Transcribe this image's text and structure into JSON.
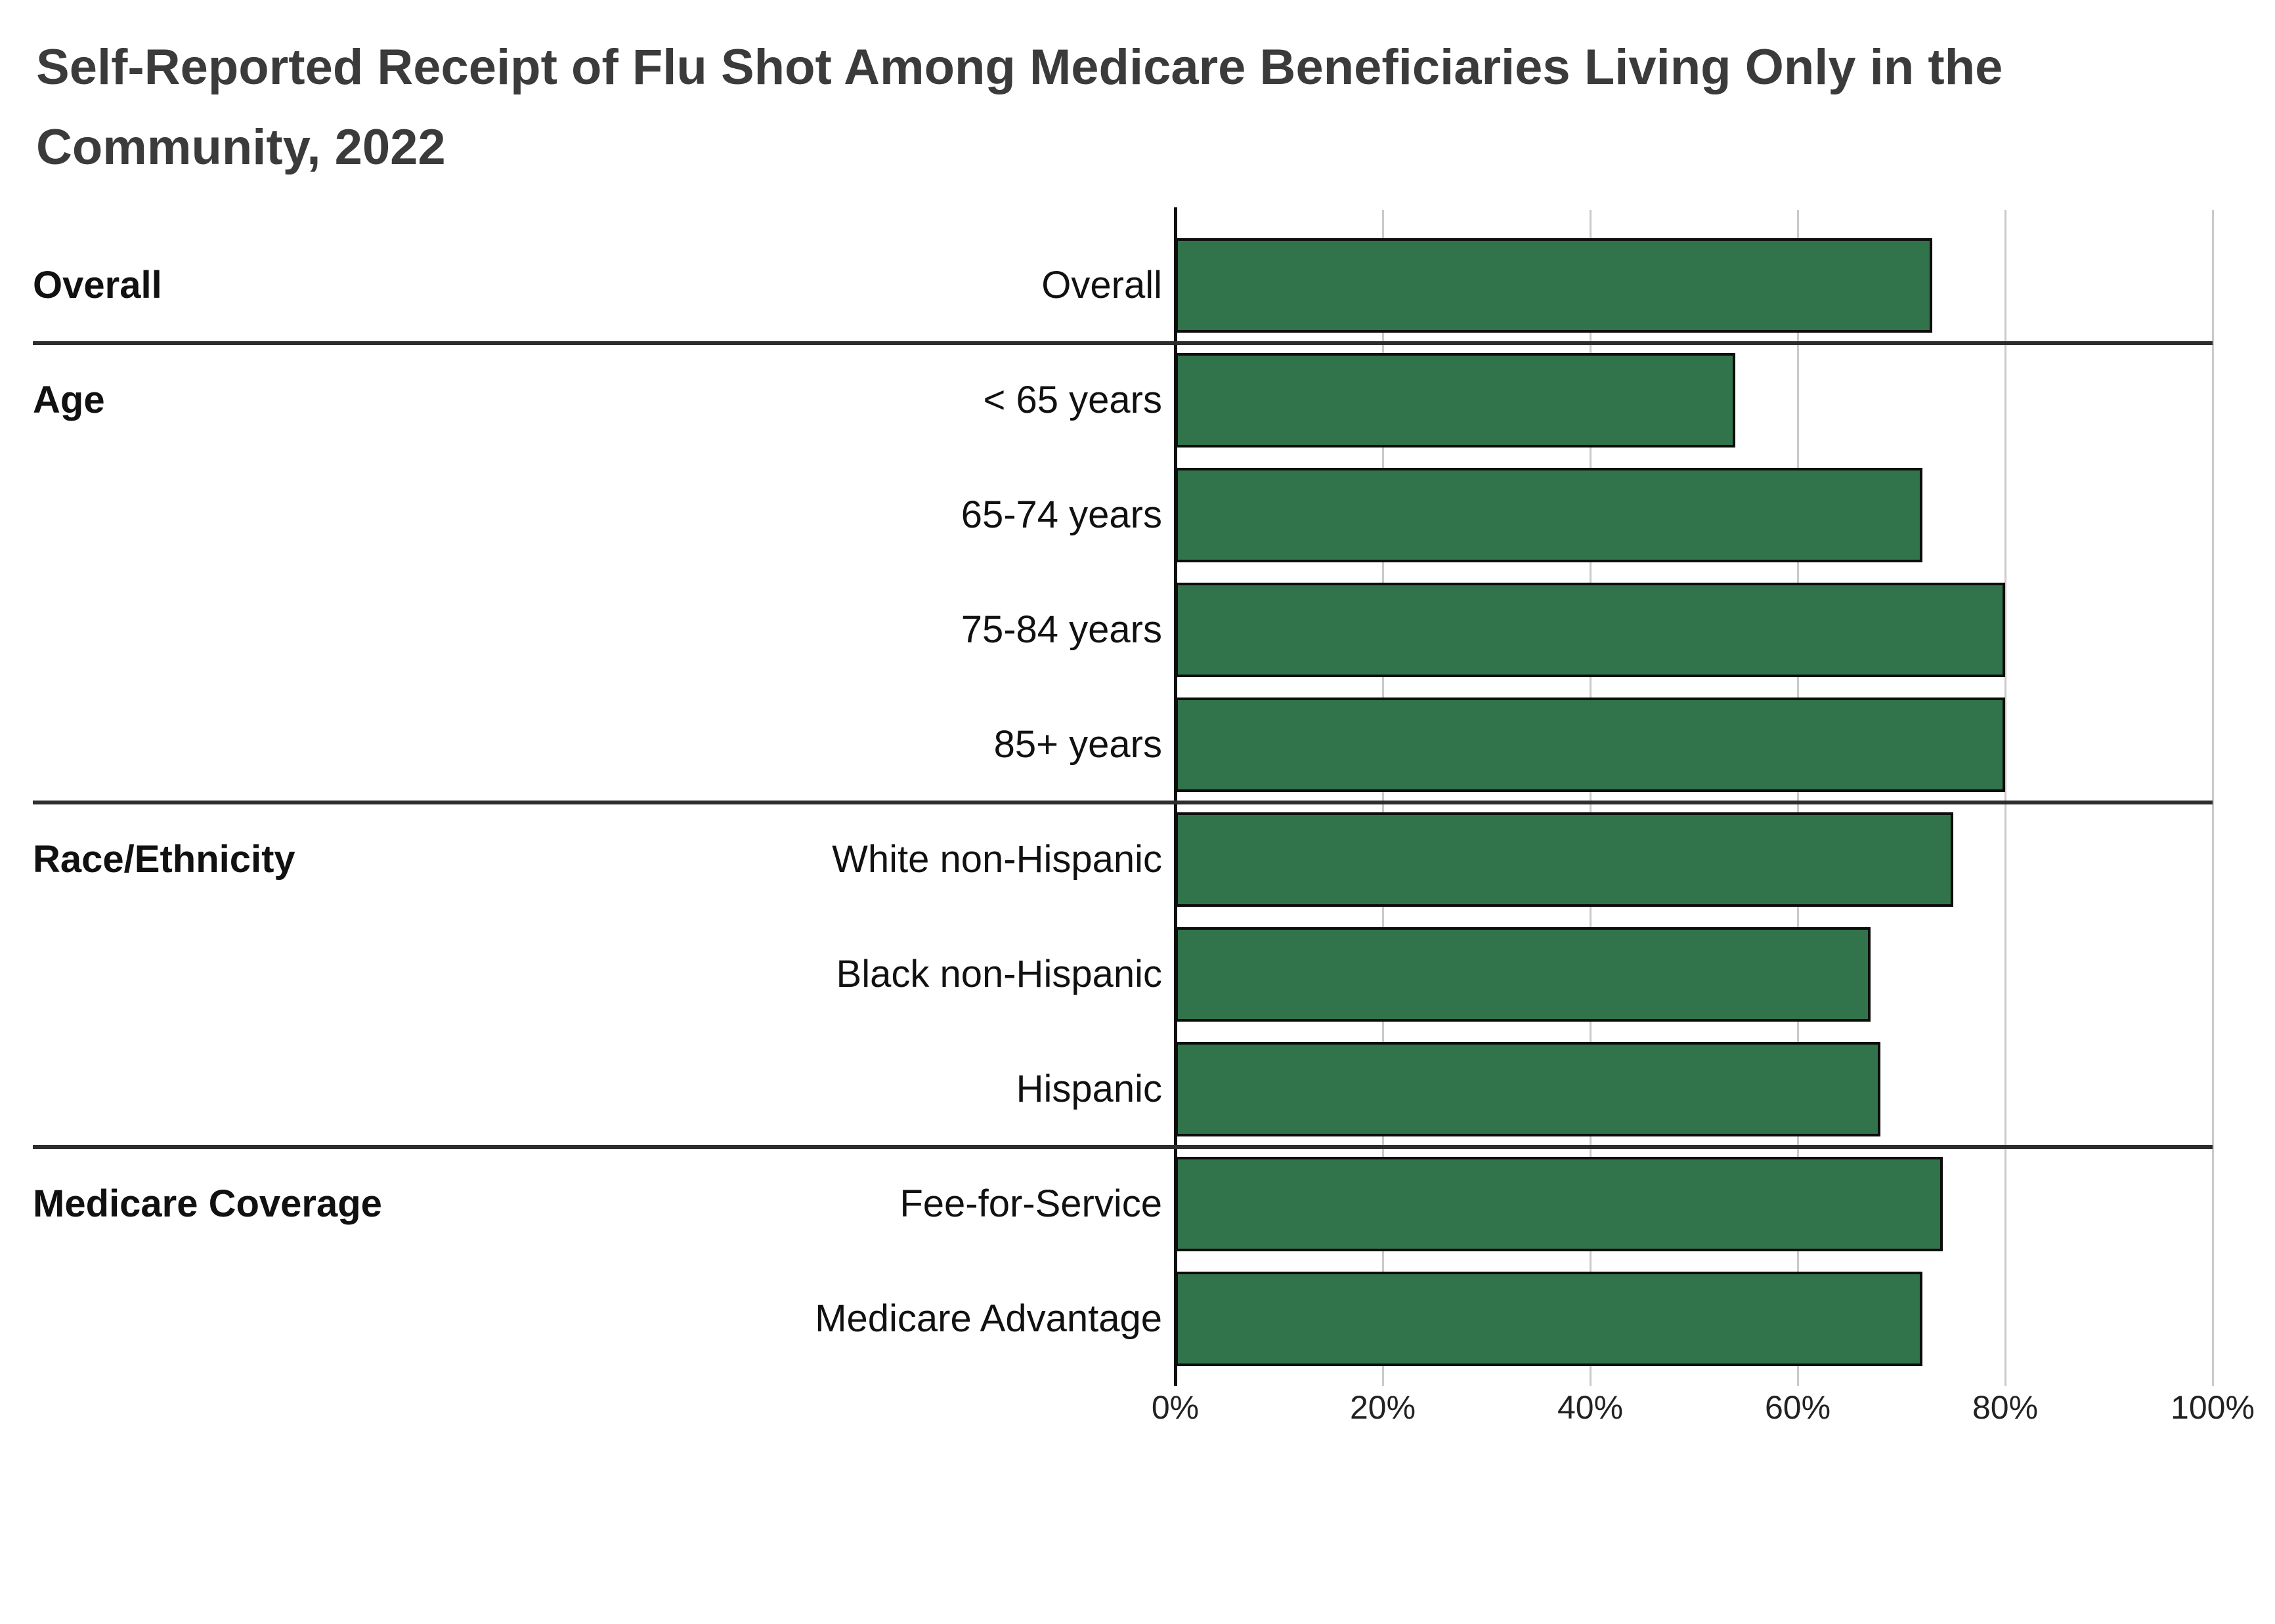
{
  "title": "Self-Reported Receipt of Flu Shot Among Medicare Beneficiaries Living Only in the Community, 2022",
  "colors": {
    "bar_fill": "#31734B",
    "bar_border": "#0d0d0d",
    "gridline": "#cacaca",
    "axis": "#111111",
    "separator": "#2d2d2d",
    "title_text": "#3b3b3b",
    "label_text": "#111111"
  },
  "chart_data": {
    "type": "bar",
    "orientation": "horizontal",
    "title": "Self-Reported Receipt of Flu Shot Among Medicare Beneficiaries Living Only in the Community, 2022",
    "xlabel": "",
    "ylabel": "",
    "unit": "%",
    "xlim": [
      0,
      100
    ],
    "x_ticks": [
      "0%",
      "20%",
      "40%",
      "60%",
      "80%",
      "100%"
    ],
    "grid": true,
    "legend": false,
    "categories": [
      "Overall",
      "< 65 years",
      "65-74 years",
      "75-84 years",
      "85+ years",
      "White non-Hispanic",
      "Black non-Hispanic",
      "Hispanic",
      "Fee-for-Service",
      "Medicare Advantage"
    ],
    "values": [
      73,
      54,
      72,
      80,
      80,
      75,
      67,
      68,
      74,
      72
    ],
    "groups": [
      {
        "label": "Overall",
        "rows": [
          {
            "label": "Overall",
            "value": 73
          }
        ]
      },
      {
        "label": "Age",
        "rows": [
          {
            "label": "< 65 years",
            "value": 54
          },
          {
            "label": "65-74 years",
            "value": 72
          },
          {
            "label": "75-84 years",
            "value": 80
          },
          {
            "label": "85+ years",
            "value": 80
          }
        ]
      },
      {
        "label": "Race/Ethnicity",
        "rows": [
          {
            "label": "White non-Hispanic",
            "value": 75
          },
          {
            "label": "Black non-Hispanic",
            "value": 67
          },
          {
            "label": "Hispanic",
            "value": 68
          }
        ]
      },
      {
        "label": "Medicare Coverage",
        "rows": [
          {
            "label": "Fee-for-Service",
            "value": 74
          },
          {
            "label": "Medicare Advantage",
            "value": 72
          }
        ]
      }
    ]
  }
}
